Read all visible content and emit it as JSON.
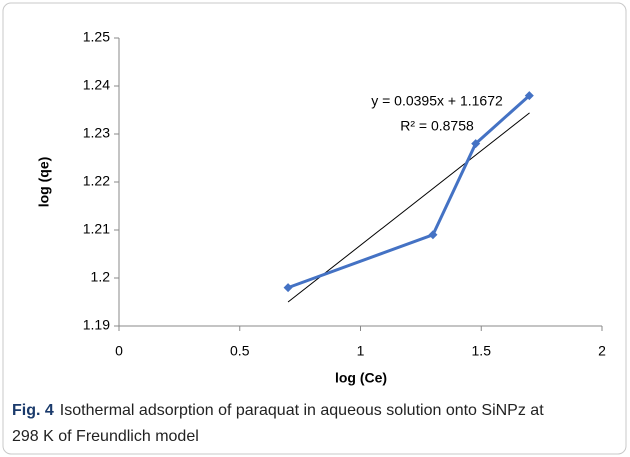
{
  "chart_data": {
    "type": "line",
    "x": [
      0.7,
      1.3,
      1.477,
      1.699
    ],
    "series": [
      {
        "color": "#4472c4",
        "values": [
          1.198,
          1.209,
          1.228,
          1.238
        ]
      }
    ],
    "trendline": {
      "color": "#000000",
      "x": [
        0.7,
        1.7
      ],
      "values": [
        1.195,
        1.2344
      ]
    },
    "annotations": [
      "y = 0.0395x + 1.1672",
      "R² = 0.8758"
    ],
    "xlabel": "log (Ce)",
    "ylabel": "log (qe)",
    "xlim": [
      0,
      2
    ],
    "xticks": [
      0,
      0.5,
      1,
      1.5,
      2
    ],
    "ylim": [
      1.19,
      1.25
    ],
    "yticks": [
      1.19,
      1.2,
      1.21,
      1.22,
      1.23,
      1.24,
      1.25
    ]
  },
  "caption": {
    "label": "Fig. 4",
    "text": "Isothermal adsorption of paraquat in aqueous solution onto SiNPz at 298 K of Freundlich model"
  }
}
